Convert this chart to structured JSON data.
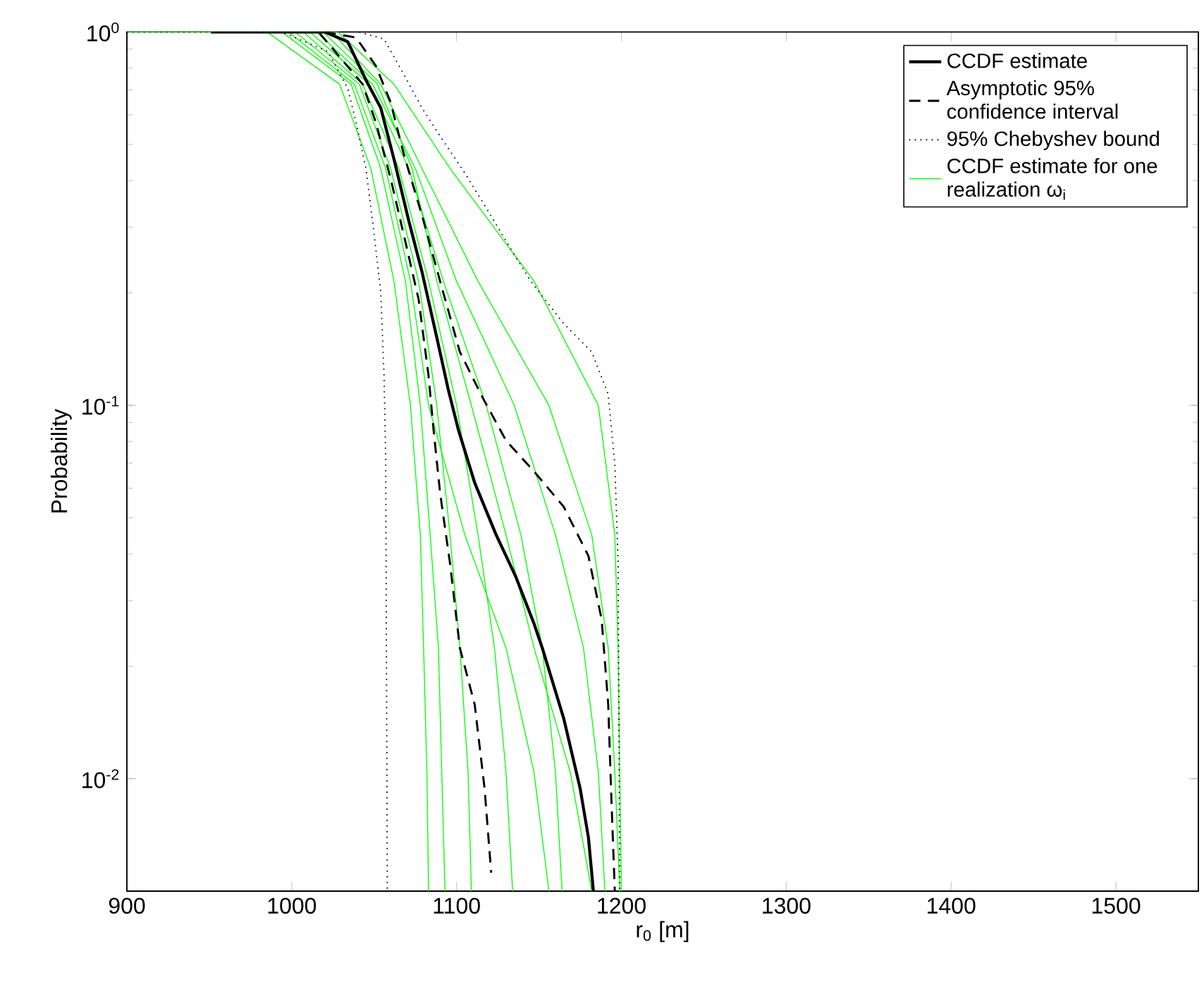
{
  "chart_data": {
    "type": "line",
    "xlabel": "r$_{0}$ [m]",
    "ylabel": "Probability",
    "log": "y",
    "legend": "top right",
    "xlim": [
      900,
      1550
    ],
    "ylim": [
      0.005,
      1
    ],
    "xticks": [
      900,
      1000,
      1100,
      1200,
      1300,
      1400,
      1500
    ],
    "yticks": [
      {
        "value": 0.01,
        "label": "10$^{-2}$"
      },
      {
        "value": 0.1,
        "label": "10$^{-1}$"
      },
      {
        "value": 1,
        "label": "10$^{0}$"
      }
    ],
    "series": [
      {
        "name": "CCDF estimate for one realization ω$_{i}$",
        "color": "#00ff00",
        "line_style": "solid",
        "x": [
          900,
          985,
          1029,
          1048,
          1062,
          1072,
          1078,
          1080,
          1082,
          1083
        ],
        "values": [
          1,
          1,
          0.725,
          0.431,
          0.215,
          0.1,
          0.045,
          0.0224,
          0.0104,
          0.005
        ]
      },
      {
        "color": "#00ff00",
        "line_style": "solid",
        "x": [
          900,
          994,
          1036,
          1054,
          1069,
          1078,
          1084,
          1089,
          1091,
          1093
        ],
        "values": [
          1,
          1,
          0.725,
          0.431,
          0.215,
          0.1,
          0.045,
          0.0224,
          0.0104,
          0.005
        ]
      },
      {
        "color": "#00ff00",
        "line_style": "solid",
        "x": [
          900,
          1002,
          1041,
          1060,
          1077,
          1088,
          1096,
          1102,
          1107,
          1109
        ],
        "values": [
          1,
          1,
          0.725,
          0.431,
          0.215,
          0.1,
          0.045,
          0.0224,
          0.0104,
          0.005
        ]
      },
      {
        "color": "#00ff00",
        "line_style": "solid",
        "x": [
          900,
          1007,
          1043,
          1065,
          1083,
          1100,
          1113,
          1123,
          1130,
          1134
        ],
        "values": [
          1,
          1,
          0.725,
          0.431,
          0.215,
          0.1,
          0.045,
          0.0224,
          0.0104,
          0.005
        ]
      },
      {
        "color": "#00ff00",
        "line_style": "solid",
        "x": [
          900,
          1011,
          1047,
          1071,
          1092,
          1118,
          1139,
          1152,
          1160,
          1164
        ],
        "values": [
          1,
          1,
          0.725,
          0.431,
          0.215,
          0.1,
          0.045,
          0.0224,
          0.0104,
          0.005
        ]
      },
      {
        "color": "#00ff00",
        "line_style": "solid",
        "x": [
          900,
          1015,
          1049,
          1075,
          1100,
          1135,
          1160,
          1177,
          1186,
          1190
        ],
        "values": [
          1,
          1,
          0.725,
          0.431,
          0.215,
          0.1,
          0.045,
          0.0224,
          0.0104,
          0.005
        ]
      },
      {
        "color": "#00ff00",
        "line_style": "solid",
        "x": [
          900,
          1024,
          1054,
          1079,
          1113,
          1156,
          1182,
          1192,
          1196,
          1199
        ],
        "values": [
          1,
          1,
          0.725,
          0.431,
          0.215,
          0.1,
          0.045,
          0.0224,
          0.0104,
          0.005
        ]
      },
      {
        "color": "#00ff00",
        "line_style": "solid",
        "x": [
          900,
          1028,
          1062,
          1096,
          1147,
          1186,
          1196,
          1198,
          1199,
          1200
        ],
        "values": [
          1,
          1,
          0.725,
          0.431,
          0.215,
          0.1,
          0.045,
          0.0224,
          0.0104,
          0.005
        ]
      },
      {
        "color": "#00ff00",
        "line_style": "solid",
        "x": [
          900,
          998,
          1038,
          1057,
          1072,
          1083,
          1105,
          1130,
          1147,
          1156
        ],
        "values": [
          1,
          1,
          0.725,
          0.431,
          0.215,
          0.1,
          0.045,
          0.0224,
          0.0104,
          0.005
        ]
      },
      {
        "color": "#00ff00",
        "line_style": "solid",
        "x": [
          900,
          1019,
          1052,
          1073,
          1088,
          1109,
          1130,
          1147,
          1169,
          1182
        ],
        "values": [
          1,
          1,
          0.725,
          0.431,
          0.215,
          0.1,
          0.045,
          0.0224,
          0.0104,
          0.005
        ]
      },
      {
        "name": "CCDF estimate",
        "color": "#000000",
        "line_style": "solid",
        "x": [
          951,
          1020,
          1034,
          1045,
          1054,
          1062,
          1071,
          1079,
          1088,
          1095,
          1101,
          1111,
          1124,
          1136,
          1147,
          1152,
          1165,
          1175,
          1180,
          1183
        ],
        "values": [
          1,
          1,
          0.941,
          0.744,
          0.626,
          0.457,
          0.312,
          0.228,
          0.152,
          0.11,
          0.0863,
          0.062,
          0.045,
          0.0347,
          0.026,
          0.0224,
          0.0145,
          0.0094,
          0.00695,
          0.005
        ]
      },
      {
        "name": "Asymptotic 95% confidence interval",
        "color": "#000000",
        "line_style": "dashed",
        "x": [
          1017,
          1043,
          1051,
          1060,
          1068,
          1077,
          1083,
          1086,
          1090,
          1096,
          1102,
          1111,
          1117,
          1121
        ],
        "values": [
          0.991,
          0.725,
          0.573,
          0.405,
          0.286,
          0.192,
          0.12,
          0.0863,
          0.0583,
          0.0378,
          0.0224,
          0.0158,
          0.0094,
          0.0056
        ]
      },
      {
        "color": "#000000",
        "line_style": "dashed",
        "x": [
          1020,
          1039,
          1051,
          1060,
          1068,
          1079,
          1090,
          1102,
          1116,
          1130,
          1147,
          1165,
          1180,
          1188,
          1192,
          1194,
          1196
        ],
        "values": [
          1,
          0.966,
          0.812,
          0.648,
          0.47,
          0.323,
          0.215,
          0.139,
          0.1045,
          0.0805,
          0.0665,
          0.0535,
          0.0395,
          0.0267,
          0.0158,
          0.00863,
          0.005
        ]
      },
      {
        "name": "95% Chebyshev bound",
        "color": "#000000",
        "line_style": "dotted",
        "x": [
          900,
          994,
          1022,
          1034,
          1039,
          1045,
          1049,
          1054,
          1056,
          1057,
          1058
        ],
        "values": [
          1,
          1,
          0.886,
          0.706,
          0.573,
          0.431,
          0.312,
          0.202,
          0.12,
          0.0713,
          0.005
        ]
      },
      {
        "color": "#000000",
        "line_style": "dotted",
        "x": [
          1041,
          1056,
          1068,
          1079,
          1090,
          1105,
          1119,
          1133,
          1145,
          1165,
          1182,
          1192,
          1196,
          1198,
          1199
        ],
        "values": [
          1,
          0.957,
          0.77,
          0.626,
          0.526,
          0.419,
          0.332,
          0.262,
          0.215,
          0.1655,
          0.139,
          0.107,
          0.0694,
          0.0378,
          0.005
        ]
      }
    ]
  }
}
